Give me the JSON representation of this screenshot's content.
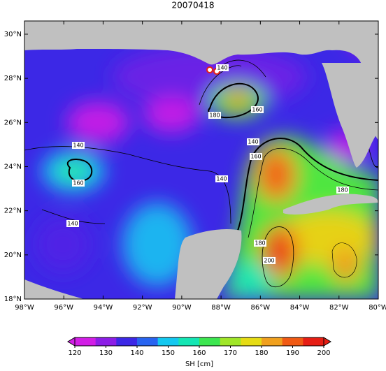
{
  "map": {
    "title": "20070418",
    "lonlim": [
      -98,
      -80
    ],
    "latlim": [
      18,
      30.6
    ],
    "lon_ticks": [
      {
        "value": -98,
        "label": "98°W"
      },
      {
        "value": -96,
        "label": "96°W"
      },
      {
        "value": -94,
        "label": "94°W"
      },
      {
        "value": -92,
        "label": "92°W"
      },
      {
        "value": -90,
        "label": "90°W"
      },
      {
        "value": -88,
        "label": "88°W"
      },
      {
        "value": -86,
        "label": "86°W"
      },
      {
        "value": -84,
        "label": "84°W"
      },
      {
        "value": -82,
        "label": "82°W"
      },
      {
        "value": -80,
        "label": "80°W"
      }
    ],
    "lat_ticks": [
      {
        "value": 18,
        "label": "18°N"
      },
      {
        "value": 20,
        "label": "20°N"
      },
      {
        "value": 22,
        "label": "22°N"
      },
      {
        "value": 24,
        "label": "24°N"
      },
      {
        "value": 26,
        "label": "26°N"
      },
      {
        "value": 28,
        "label": "28°N"
      },
      {
        "value": 30,
        "label": "30°N"
      }
    ],
    "colorbar": {
      "label": "SH [cm]",
      "range": [
        120,
        200
      ],
      "ticks": [
        120,
        130,
        140,
        150,
        160,
        170,
        180,
        190,
        200
      ],
      "colors": [
        "#d21ee6",
        "#8c1ee6",
        "#3c28e6",
        "#2864f0",
        "#14c8f0",
        "#14e6b4",
        "#3ce650",
        "#a0e628",
        "#e6dc14",
        "#f0a01e",
        "#f05a14",
        "#e61e14"
      ]
    },
    "contour_labels": [
      140,
      180,
      160,
      140,
      160,
      140,
      140,
      160,
      180,
      140,
      180,
      200
    ]
  }
}
